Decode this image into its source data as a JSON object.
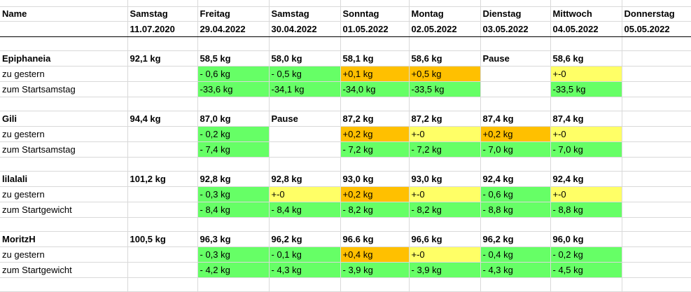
{
  "header": {
    "name_label": "Name",
    "columns": [
      {
        "day": "Samstag",
        "date": "11.07.2020"
      },
      {
        "day": "Freitag",
        "date": "29.04.2022"
      },
      {
        "day": "Samstag",
        "date": "30.04.2022"
      },
      {
        "day": "Sonntag",
        "date": "01.05.2022"
      },
      {
        "day": "Montag",
        "date": "02.05.2022"
      },
      {
        "day": "Dienstag",
        "date": "03.05.2022"
      },
      {
        "day": "Mittwoch",
        "date": "04.05.2022"
      },
      {
        "day": "Donnerstag",
        "date": "05.05.2022"
      }
    ]
  },
  "colors": {
    "green": "#66ff66",
    "orange": "#ffc000",
    "yellow": "#ffff66",
    "grid": "#d9d9d9"
  },
  "people": [
    {
      "name": "Epiphaneia",
      "values": [
        "92,1 kg",
        "58,5 kg",
        "58,0 kg",
        "58,1 kg",
        "58,6 kg",
        "Pause",
        "58,6 kg",
        ""
      ],
      "row2_label": "zu gestern",
      "row2": [
        {
          "text": "",
          "color": ""
        },
        {
          "text": "- 0,6 kg",
          "color": "green"
        },
        {
          "text": "- 0,5 kg",
          "color": "green"
        },
        {
          "text": "+0,1 kg",
          "color": "orange"
        },
        {
          "text": "+0,5 kg",
          "color": "orange"
        },
        {
          "text": "",
          "color": ""
        },
        {
          "text": "+-0",
          "color": "yellow"
        },
        {
          "text": "",
          "color": ""
        }
      ],
      "row3_label": "zum Startsamstag",
      "row3": [
        {
          "text": "",
          "color": ""
        },
        {
          "text": "-33,6 kg",
          "color": "green"
        },
        {
          "text": "-34,1 kg",
          "color": "green"
        },
        {
          "text": "-34,0 kg",
          "color": "green"
        },
        {
          "text": "-33,5 kg",
          "color": "green"
        },
        {
          "text": "",
          "color": ""
        },
        {
          "text": "-33,5 kg",
          "color": "green"
        },
        {
          "text": "",
          "color": ""
        }
      ]
    },
    {
      "name": "Gili",
      "values": [
        "94,4 kg",
        "87,0 kg",
        "Pause",
        "87,2 kg",
        "87,2 kg",
        "87,4 kg",
        "87,4 kg",
        ""
      ],
      "row2_label": "zu gestern",
      "row2": [
        {
          "text": "",
          "color": ""
        },
        {
          "text": "- 0,2 kg",
          "color": "green"
        },
        {
          "text": "",
          "color": ""
        },
        {
          "text": "+0,2 kg",
          "color": "orange"
        },
        {
          "text": "+-0",
          "color": "yellow"
        },
        {
          "text": "+0,2 kg",
          "color": "orange"
        },
        {
          "text": "+-0",
          "color": "yellow"
        },
        {
          "text": "",
          "color": ""
        }
      ],
      "row3_label": "zum Startsamstag",
      "row3": [
        {
          "text": "",
          "color": ""
        },
        {
          "text": "- 7,4 kg",
          "color": "green"
        },
        {
          "text": "",
          "color": ""
        },
        {
          "text": "- 7,2 kg",
          "color": "green"
        },
        {
          "text": "- 7,2 kg",
          "color": "green"
        },
        {
          "text": "- 7,0 kg",
          "color": "green"
        },
        {
          "text": "- 7,0 kg",
          "color": "green"
        },
        {
          "text": "",
          "color": ""
        }
      ]
    },
    {
      "name": "lilalali",
      "values": [
        "101,2 kg",
        "92,8 kg",
        "92,8 kg",
        "93,0 kg",
        "93,0 kg",
        "92,4 kg",
        "92,4 kg",
        ""
      ],
      "row2_label": "zu gestern",
      "row2": [
        {
          "text": "",
          "color": ""
        },
        {
          "text": "- 0,3 kg",
          "color": "green"
        },
        {
          "text": "+-0",
          "color": "yellow"
        },
        {
          "text": "+0,2 kg",
          "color": "orange"
        },
        {
          "text": "+-0",
          "color": "yellow"
        },
        {
          "text": "- 0,6 kg",
          "color": "green"
        },
        {
          "text": "+-0",
          "color": "yellow"
        },
        {
          "text": "",
          "color": ""
        }
      ],
      "row3_label": "zum Startgewicht",
      "row3": [
        {
          "text": "",
          "color": ""
        },
        {
          "text": "- 8,4 kg",
          "color": "green"
        },
        {
          "text": "- 8,4 kg",
          "color": "green"
        },
        {
          "text": "- 8,2 kg",
          "color": "green"
        },
        {
          "text": "- 8,2 kg",
          "color": "green"
        },
        {
          "text": "- 8,8 kg",
          "color": "green"
        },
        {
          "text": "- 8,8 kg",
          "color": "green"
        },
        {
          "text": "",
          "color": ""
        }
      ]
    },
    {
      "name": "MoritzH",
      "values": [
        "100,5 kg",
        "96,3 kg",
        "96,2 kg",
        "96.6 kg",
        "96,6 kg",
        "96,2 kg",
        "96,0 kg",
        ""
      ],
      "row2_label": "zu gestern",
      "row2": [
        {
          "text": "",
          "color": ""
        },
        {
          "text": "- 0,3 kg",
          "color": "green"
        },
        {
          "text": "- 0,1 kg",
          "color": "green"
        },
        {
          "text": "+0,4 kg",
          "color": "orange"
        },
        {
          "text": "+-0",
          "color": "yellow"
        },
        {
          "text": "- 0,4 kg",
          "color": "green"
        },
        {
          "text": "- 0,2 kg",
          "color": "green"
        },
        {
          "text": "",
          "color": ""
        }
      ],
      "row3_label": "zum Startgewicht",
      "row3": [
        {
          "text": "",
          "color": ""
        },
        {
          "text": "- 4,2 kg",
          "color": "green"
        },
        {
          "text": "- 4,3 kg",
          "color": "green"
        },
        {
          "text": "- 3,9 kg",
          "color": "green"
        },
        {
          "text": "- 3,9 kg",
          "color": "green"
        },
        {
          "text": "- 4,3 kg",
          "color": "green"
        },
        {
          "text": "- 4,5 kg",
          "color": "green"
        },
        {
          "text": "",
          "color": ""
        }
      ]
    }
  ]
}
